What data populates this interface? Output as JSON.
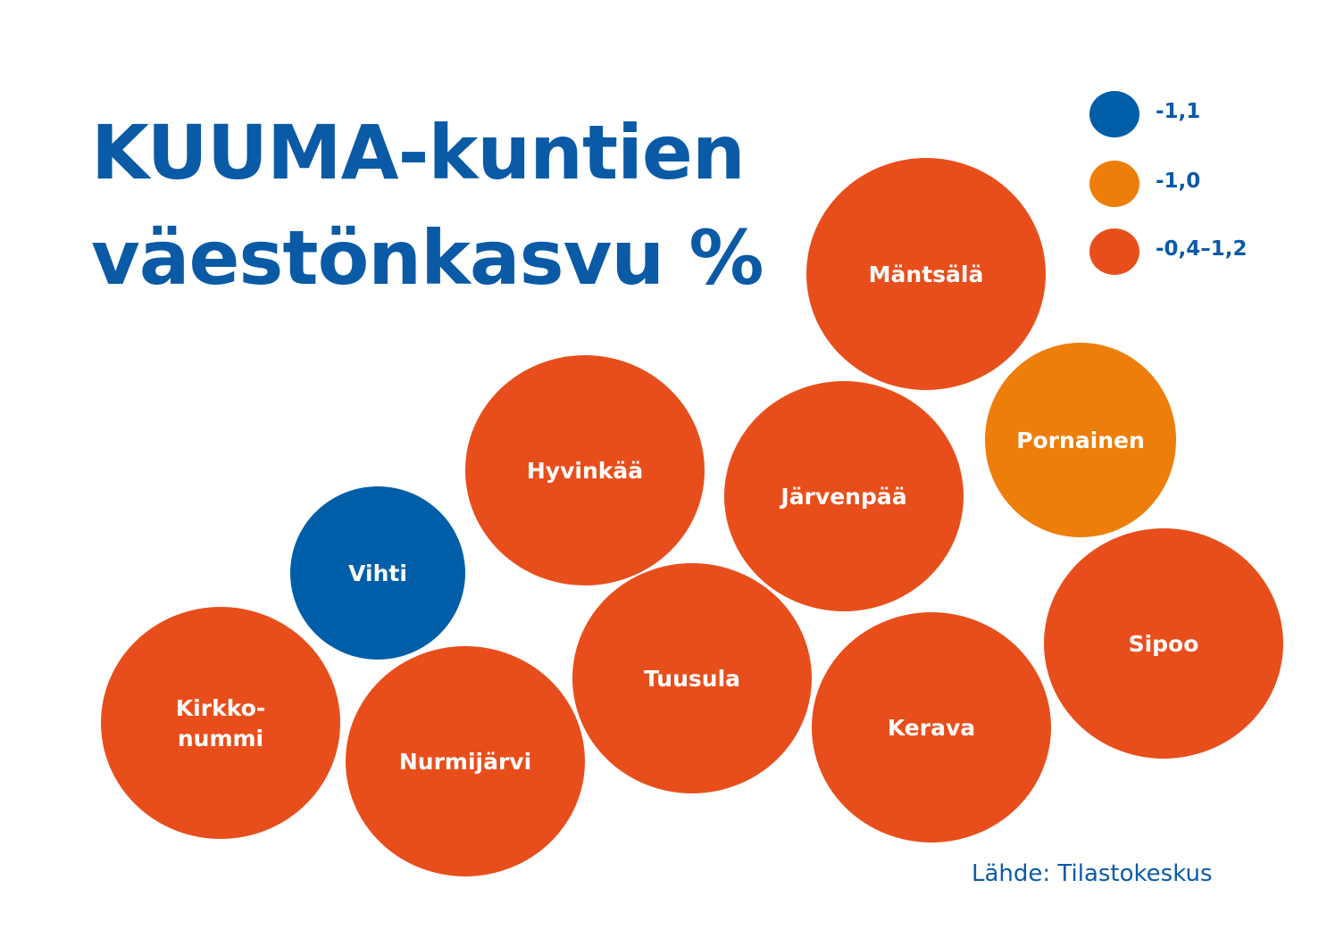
{
  "title_line1": "KUUMA-kuntien",
  "title_line2": "väestönkasvu %",
  "source": "Lähde: Tilastokeskus",
  "colors": {
    "blue": "#005ea8",
    "light_orange": "#ee7e0a",
    "orange": "#e84e1b",
    "title": "#0a5aa6"
  },
  "legend": [
    {
      "label": "-1,1",
      "color": "#005ea8"
    },
    {
      "label": "-1,0",
      "color": "#ee7e0a"
    },
    {
      "label": "-0,4–1,2",
      "color": "#e84e1b"
    }
  ],
  "chart_data": {
    "type": "bubble",
    "title": "KUUMA-kuntien väestönkasvu %",
    "legend_placement": "top-right",
    "series": [
      {
        "name": "-1,1",
        "color": "#005ea8",
        "members": [
          "Vihti"
        ]
      },
      {
        "name": "-1,0",
        "color": "#ee7e0a",
        "members": [
          "Pornainen"
        ]
      },
      {
        "name": "-0,4–1,2",
        "color": "#e84e1b",
        "members": [
          "Mäntsälä",
          "Hyvinkää",
          "Järvenpää",
          "Tuusula",
          "Kerava",
          "Sipoo",
          "Kirkkonummi",
          "Nurmijärvi"
        ]
      }
    ],
    "bubbles": [
      {
        "name": "Mäntsälä",
        "label_lines": [
          "Mäntsälä"
        ],
        "group": "-0,4–1,2"
      },
      {
        "name": "Pornainen",
        "label_lines": [
          "Pornainen"
        ],
        "group": "-1,0"
      },
      {
        "name": "Hyvinkää",
        "label_lines": [
          "Hyvinkää"
        ],
        "group": "-0,4–1,2"
      },
      {
        "name": "Järvenpää",
        "label_lines": [
          "Järvenpää"
        ],
        "group": "-0,4–1,2"
      },
      {
        "name": "Vihti",
        "label_lines": [
          "Vihti"
        ],
        "group": "-1,1"
      },
      {
        "name": "Sipoo",
        "label_lines": [
          "Sipoo"
        ],
        "group": "-0,4–1,2"
      },
      {
        "name": "Tuusula",
        "label_lines": [
          "Tuusula"
        ],
        "group": "-0,4–1,2"
      },
      {
        "name": "Kerava",
        "label_lines": [
          "Kerava"
        ],
        "group": "-0,4–1,2"
      },
      {
        "name": "Kirkkonummi",
        "label_lines": [
          "Kirkko-",
          "nummi"
        ],
        "group": "-0,4–1,2"
      },
      {
        "name": "Nurmijärvi",
        "label_lines": [
          "Nurmijärvi"
        ],
        "group": "-0,4–1,2"
      }
    ]
  }
}
